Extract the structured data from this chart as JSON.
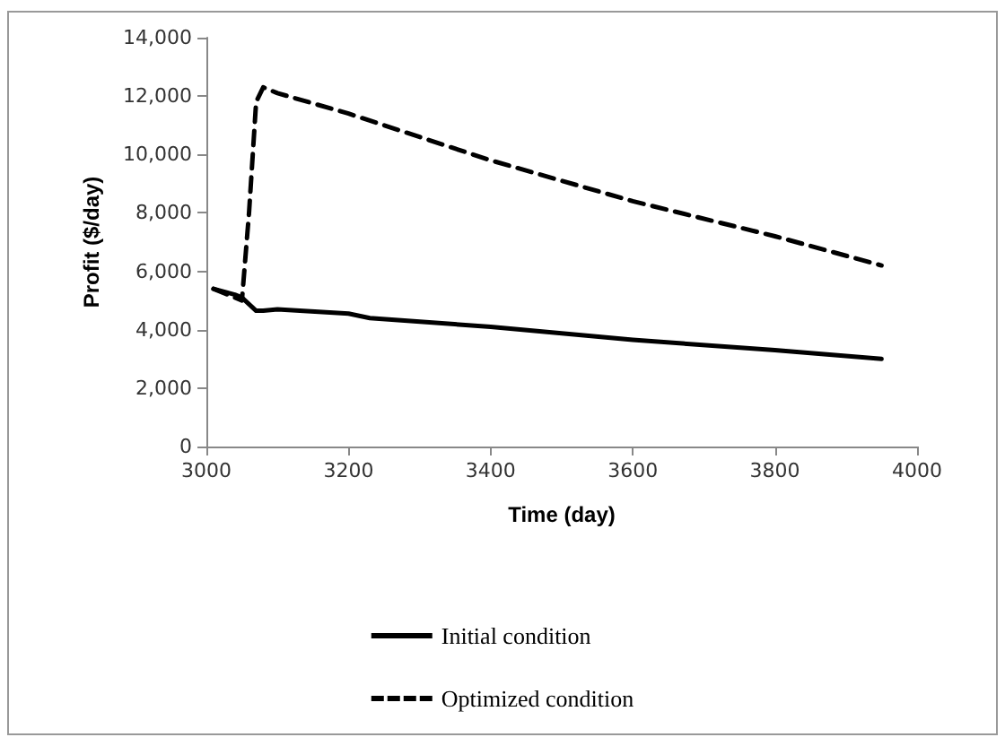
{
  "chart_data": {
    "type": "line",
    "xlabel": "Time (day)",
    "ylabel": "Profit ($/day)",
    "xlim": [
      3000,
      4000
    ],
    "xticks": [
      3000,
      3200,
      3400,
      3600,
      3800,
      4000
    ],
    "ylim": [
      0,
      14000
    ],
    "yticks": [
      {
        "value": 0,
        "label": "0"
      },
      {
        "value": 2000,
        "label": "2,000"
      },
      {
        "value": 4000,
        "label": "4,000"
      },
      {
        "value": 6000,
        "label": "6,000"
      },
      {
        "value": 8000,
        "label": "8,000"
      },
      {
        "value": 10000,
        "label": "10,000"
      },
      {
        "value": 12000,
        "label": "12,000"
      },
      {
        "value": 14000,
        "label": "14,000"
      }
    ],
    "grid": false,
    "legend": "bottom",
    "marker": "none",
    "series": [
      {
        "name": "Initial condition",
        "color": "#000000",
        "line_style": "solid",
        "x": [
          3010,
          3040,
          3050,
          3070,
          3080,
          3100,
          3200,
          3230,
          3400,
          3600,
          3800,
          3950
        ],
        "values": [
          5400,
          5200,
          5100,
          4650,
          4650,
          4700,
          4550,
          4400,
          4100,
          3650,
          3300,
          3000
        ]
      },
      {
        "name": "Optimized condition",
        "color": "#000000",
        "line_style": "dashed",
        "x": [
          3010,
          3040,
          3050,
          3060,
          3070,
          3080,
          3100,
          3200,
          3400,
          3600,
          3800,
          3950
        ],
        "values": [
          5400,
          5100,
          5000,
          8000,
          11800,
          12300,
          12100,
          11400,
          9800,
          8400,
          7200,
          6200
        ]
      }
    ]
  }
}
